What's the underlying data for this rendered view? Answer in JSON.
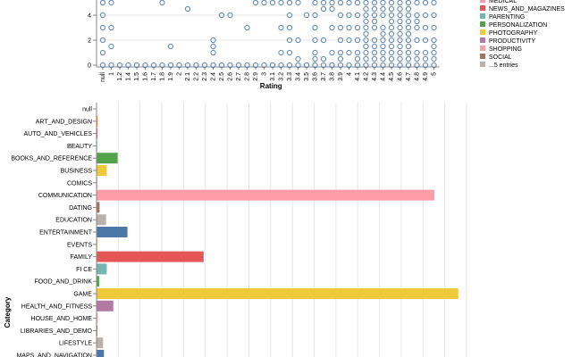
{
  "chart_data": [
    {
      "type": "scatter",
      "xlabel": "Rating",
      "ylabel": "",
      "y_ticks": [
        "0",
        "2",
        "4"
      ],
      "x_ticks": [
        "null",
        "1",
        "1.2",
        "1.4",
        "1.5",
        "1.6",
        "1.7",
        "1.8",
        "1.9",
        "2",
        "2.1",
        "2.2",
        "2.3",
        "2.4",
        "2.5",
        "2.6",
        "2.7",
        "2.8",
        "2.9",
        "3",
        "3.1",
        "3.2",
        "3.3",
        "3.4",
        "3.5",
        "3.6",
        "3.7",
        "3.8",
        "3.9",
        "4",
        "4.1",
        "4.2",
        "4.3",
        "4.4",
        "4.5",
        "4.6",
        "4.7",
        "4.8",
        "4.9",
        "5"
      ],
      "point_color": "#4c78a8",
      "points": [
        [
          0,
          0
        ],
        [
          1,
          0
        ],
        [
          2,
          0
        ],
        [
          3,
          0
        ],
        [
          4,
          0
        ],
        [
          5,
          0
        ],
        [
          6,
          0
        ],
        [
          7,
          0
        ],
        [
          8,
          0
        ],
        [
          9,
          0
        ],
        [
          10,
          0
        ],
        [
          11,
          0
        ],
        [
          12,
          0
        ],
        [
          13,
          0
        ],
        [
          14,
          0
        ],
        [
          15,
          0
        ],
        [
          16,
          0
        ],
        [
          17,
          0
        ],
        [
          18,
          0
        ],
        [
          19,
          0
        ],
        [
          20,
          0
        ],
        [
          21,
          0
        ],
        [
          22,
          0
        ],
        [
          23,
          0
        ],
        [
          24,
          0
        ],
        [
          25,
          0
        ],
        [
          26,
          0
        ],
        [
          27,
          0
        ],
        [
          28,
          0
        ],
        [
          29,
          0
        ],
        [
          30,
          0
        ],
        [
          31,
          0
        ],
        [
          32,
          0
        ],
        [
          33,
          0
        ],
        [
          34,
          0
        ],
        [
          35,
          0
        ],
        [
          36,
          0
        ],
        [
          37,
          0
        ],
        [
          38,
          0
        ],
        [
          39,
          0
        ],
        [
          0,
          1
        ],
        [
          0,
          2
        ],
        [
          0,
          3
        ],
        [
          0,
          4
        ],
        [
          0,
          5
        ],
        [
          1,
          1.5
        ],
        [
          1,
          3
        ],
        [
          1,
          5
        ],
        [
          7,
          5
        ],
        [
          8,
          1.5
        ],
        [
          10,
          4.5
        ],
        [
          13,
          1
        ],
        [
          13,
          1.5
        ],
        [
          13,
          2
        ],
        [
          14,
          4
        ],
        [
          15,
          4
        ],
        [
          17,
          3
        ],
        [
          18,
          5
        ],
        [
          19,
          5
        ],
        [
          20,
          5
        ],
        [
          21,
          1
        ],
        [
          21,
          3
        ],
        [
          21,
          5
        ],
        [
          22,
          1
        ],
        [
          22,
          2
        ],
        [
          22,
          3
        ],
        [
          22,
          4
        ],
        [
          22,
          5
        ],
        [
          23,
          0.5
        ],
        [
          23,
          2
        ],
        [
          23,
          5
        ],
        [
          24,
          4
        ],
        [
          25,
          0.5
        ],
        [
          25,
          1
        ],
        [
          25,
          2
        ],
        [
          25,
          3
        ],
        [
          25,
          4
        ],
        [
          25,
          5
        ],
        [
          26,
          0.5
        ],
        [
          26,
          2
        ],
        [
          26,
          4.5
        ],
        [
          26,
          5
        ],
        [
          27,
          1
        ],
        [
          27,
          3
        ],
        [
          27,
          4.5
        ],
        [
          27,
          5
        ],
        [
          28,
          0.5
        ],
        [
          28,
          1
        ],
        [
          28,
          2
        ],
        [
          28,
          3
        ],
        [
          28,
          4
        ],
        [
          28,
          5
        ],
        [
          29,
          1
        ],
        [
          29,
          2
        ],
        [
          29,
          3
        ],
        [
          29,
          4
        ],
        [
          29,
          5
        ],
        [
          30,
          0.5
        ],
        [
          30,
          1
        ],
        [
          30,
          2
        ],
        [
          30,
          3
        ],
        [
          30,
          4
        ],
        [
          30,
          5
        ],
        [
          31,
          0.5
        ],
        [
          31,
          1
        ],
        [
          31,
          1.5
        ],
        [
          31,
          2
        ],
        [
          31,
          2.5
        ],
        [
          31,
          3
        ],
        [
          31,
          3.5
        ],
        [
          31,
          4
        ],
        [
          31,
          4.5
        ],
        [
          31,
          5
        ],
        [
          32,
          0.5
        ],
        [
          32,
          1
        ],
        [
          32,
          1.5
        ],
        [
          32,
          2
        ],
        [
          32,
          3
        ],
        [
          32,
          3.5
        ],
        [
          32,
          4
        ],
        [
          32,
          4.5
        ],
        [
          32,
          5
        ],
        [
          33,
          0.5
        ],
        [
          33,
          1
        ],
        [
          33,
          1.5
        ],
        [
          33,
          2
        ],
        [
          33,
          2.5
        ],
        [
          33,
          3
        ],
        [
          33,
          4
        ],
        [
          33,
          4.5
        ],
        [
          33,
          5
        ],
        [
          34,
          0.5
        ],
        [
          34,
          1
        ],
        [
          34,
          1.5
        ],
        [
          34,
          2
        ],
        [
          34,
          2.5
        ],
        [
          34,
          3
        ],
        [
          34,
          3.5
        ],
        [
          34,
          4
        ],
        [
          34,
          4.5
        ],
        [
          34,
          5
        ],
        [
          35,
          0.5
        ],
        [
          35,
          1
        ],
        [
          35,
          1.5
        ],
        [
          35,
          2
        ],
        [
          35,
          2.5
        ],
        [
          35,
          3
        ],
        [
          35,
          3.5
        ],
        [
          35,
          4
        ],
        [
          35,
          4.5
        ],
        [
          35,
          5
        ],
        [
          36,
          0.5
        ],
        [
          36,
          1
        ],
        [
          36,
          1.5
        ],
        [
          36,
          2
        ],
        [
          36,
          2.5
        ],
        [
          36,
          3
        ],
        [
          36,
          3.5
        ],
        [
          36,
          4
        ],
        [
          36,
          4.5
        ],
        [
          36,
          5
        ],
        [
          37,
          0.5
        ],
        [
          37,
          1
        ],
        [
          37,
          2
        ],
        [
          37,
          3
        ],
        [
          37,
          3.5
        ],
        [
          37,
          4
        ],
        [
          37,
          5
        ],
        [
          38,
          0.5
        ],
        [
          38,
          1
        ],
        [
          38,
          2
        ],
        [
          38,
          3
        ],
        [
          38,
          4
        ],
        [
          38,
          5
        ],
        [
          39,
          0.5
        ],
        [
          39,
          1
        ],
        [
          39,
          1.5
        ],
        [
          39,
          2
        ],
        [
          39,
          3
        ],
        [
          39,
          4
        ],
        [
          39,
          5
        ]
      ],
      "legend": [
        {
          "label": "MEDICAL",
          "color": "#ff9da6"
        },
        {
          "label": "NEWS_AND_MAGAZINES",
          "color": "#e45756"
        },
        {
          "label": "PARENTING",
          "color": "#72b7b2"
        },
        {
          "label": "PERSONALIZATION",
          "color": "#54a24b"
        },
        {
          "label": "PHOTOGRAPHY",
          "color": "#eeca3b"
        },
        {
          "label": "PRODUCTIVITY",
          "color": "#b279a2"
        },
        {
          "label": "SHOPPING",
          "color": "#ff9da6"
        },
        {
          "label": "SOCIAL",
          "color": "#9d755d"
        },
        {
          "label": "...5 entries",
          "color": "#bab0ac"
        }
      ]
    },
    {
      "type": "bar",
      "orientation": "horizontal",
      "ylabel": "Category",
      "xlabel": "",
      "xlim": [
        0,
        1700
      ],
      "categories": [
        "null",
        "ART_AND_DESIGN",
        "AUTO_AND_VEHICLES",
        "BEAUTY",
        "BOOKS_AND_REFERENCE",
        "BUSINESS",
        "COMICS",
        "COMMUNICATION",
        "DATING",
        "EDUCATION",
        "ENTERTAINMENT",
        "EVENTS",
        "FAMILY",
        "FI  CE",
        "FOOD_AND_DRINK",
        "GAME",
        "HEALTH_AND_FITNESS",
        "HOUSE_AND_HOME",
        "LIBRARIES_AND_DEMO",
        "LIFESTYLE",
        "MAPS_AND_NAVIGATION"
      ],
      "values": [
        0,
        3,
        2,
        1,
        95,
        45,
        1,
        1550,
        12,
        42,
        140,
        1,
        490,
        45,
        10,
        1660,
        75,
        3,
        2,
        28,
        32
      ],
      "colors": [
        "#4c78a8",
        "#f58518",
        "#e45756",
        "#72b7b2",
        "#54a24b",
        "#eeca3b",
        "#b279a2",
        "#ff9da6",
        "#9d755d",
        "#bab0ac",
        "#4c78a8",
        "#f58518",
        "#e45756",
        "#72b7b2",
        "#54a24b",
        "#eeca3b",
        "#b279a2",
        "#ff9da6",
        "#9d755d",
        "#bab0ac",
        "#4c78a8"
      ],
      "grid": true
    }
  ]
}
